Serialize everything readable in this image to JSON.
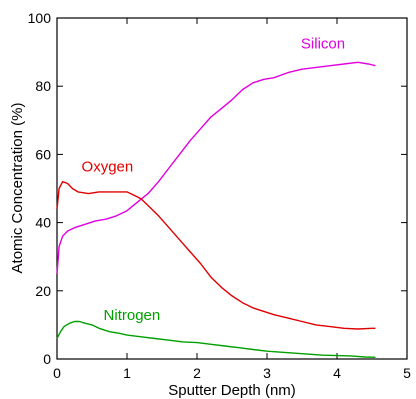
{
  "chart_data": {
    "type": "line",
    "title": "",
    "xlabel": "Sputter Depth (nm)",
    "ylabel": "Atomic Concentration (%)",
    "xlim": [
      0,
      5
    ],
    "ylim": [
      0,
      100
    ],
    "xticks": [
      0,
      1,
      2,
      3,
      4,
      5
    ],
    "yticks": [
      0,
      20,
      40,
      60,
      80,
      100
    ],
    "xtick_labels": [
      "0",
      "1",
      "2",
      "3",
      "4",
      "5"
    ],
    "ytick_labels": [
      "0",
      "20",
      "40",
      "60",
      "80",
      "100"
    ],
    "grid": false,
    "legend": "inline labels",
    "series": [
      {
        "name": "Silicon",
        "color": "#e000e0",
        "x": [
          0.0,
          0.03,
          0.08,
          0.15,
          0.25,
          0.4,
          0.55,
          0.7,
          0.85,
          1.0,
          1.15,
          1.3,
          1.45,
          1.6,
          1.75,
          1.9,
          2.05,
          2.2,
          2.35,
          2.5,
          2.65,
          2.8,
          2.95,
          3.1,
          3.3,
          3.5,
          3.7,
          3.9,
          4.1,
          4.3,
          4.45,
          4.55
        ],
        "y": [
          25,
          33,
          36,
          37.5,
          38.5,
          39.5,
          40.5,
          41,
          42,
          43.5,
          46,
          48.5,
          52,
          56,
          60,
          64,
          67.5,
          71,
          73.5,
          76,
          79,
          81,
          82,
          82.5,
          84,
          85,
          85.5,
          86,
          86.5,
          87,
          86.5,
          86
        ]
      },
      {
        "name": "Oxygen",
        "color": "#e00000",
        "x": [
          0.0,
          0.03,
          0.08,
          0.15,
          0.22,
          0.3,
          0.45,
          0.6,
          0.8,
          1.0,
          1.1,
          1.2,
          1.3,
          1.45,
          1.6,
          1.75,
          1.9,
          2.05,
          2.2,
          2.35,
          2.5,
          2.65,
          2.8,
          2.95,
          3.1,
          3.3,
          3.5,
          3.7,
          3.9,
          4.1,
          4.3,
          4.5,
          4.55
        ],
        "y": [
          44,
          50,
          52,
          51.5,
          50,
          49,
          48.5,
          49,
          49,
          49,
          48,
          47,
          45,
          42,
          38.5,
          35,
          31.5,
          28,
          24,
          21,
          18.5,
          16.5,
          15,
          14,
          13,
          12,
          11,
          10,
          9.5,
          9,
          8.8,
          9,
          9
        ]
      },
      {
        "name": "Nitrogen",
        "color": "#00a000",
        "x": [
          0.0,
          0.05,
          0.1,
          0.18,
          0.25,
          0.32,
          0.4,
          0.5,
          0.6,
          0.75,
          0.9,
          1.0,
          1.2,
          1.4,
          1.6,
          1.8,
          2.0,
          2.2,
          2.4,
          2.6,
          2.8,
          3.0,
          3.2,
          3.4,
          3.6,
          3.8,
          4.0,
          4.2,
          4.4,
          4.55
        ],
        "y": [
          6,
          8,
          9.5,
          10.5,
          11,
          11,
          10.5,
          10,
          9,
          8,
          7.5,
          7,
          6.5,
          6,
          5.5,
          5,
          4.8,
          4.3,
          3.8,
          3.3,
          2.8,
          2.3,
          2,
          1.7,
          1.4,
          1.1,
          1,
          0.9,
          0.6,
          0.5
        ]
      }
    ],
    "annotations": [
      {
        "text": "Silicon",
        "color": "#e000e0",
        "x": 3.8,
        "y": 91
      },
      {
        "text": "Oxygen",
        "color": "#e00000",
        "x": 0.72,
        "y": 55
      },
      {
        "text": "Nitrogen",
        "color": "#00a000",
        "x": 1.07,
        "y": 11.5
      }
    ]
  }
}
